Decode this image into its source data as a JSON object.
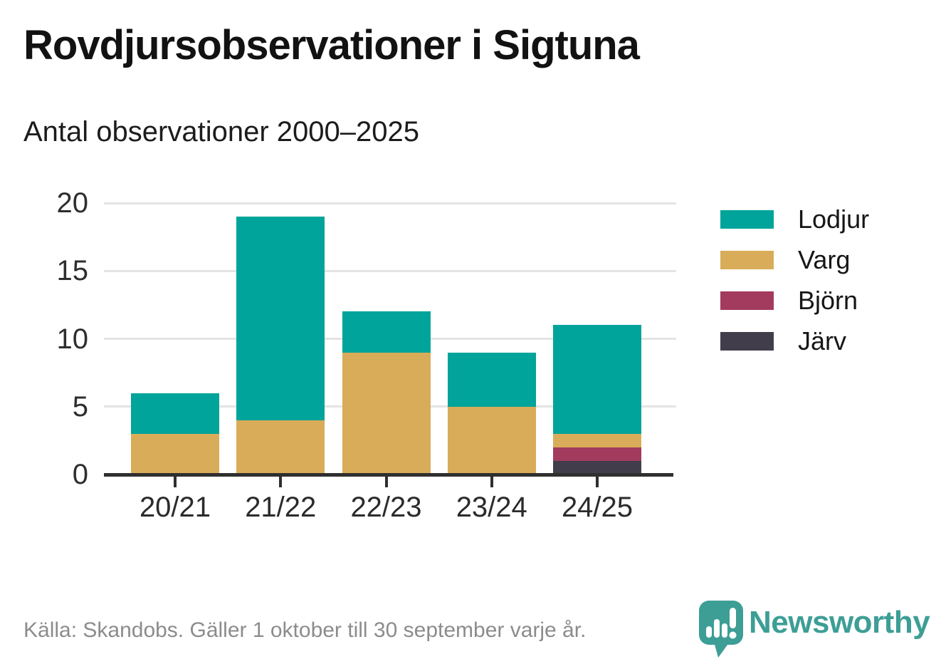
{
  "header": {
    "title": "Rovdjursobservationer i Sigtuna",
    "subtitle": "Antal observationer 2000–2025"
  },
  "chart_data": {
    "type": "bar",
    "stacked": true,
    "title": "Rovdjursobservationer i Sigtuna",
    "subtitle": "Antal observationer 2000–2025",
    "xlabel": "",
    "ylabel": "",
    "categories": [
      "20/21",
      "21/22",
      "22/23",
      "23/24",
      "24/25"
    ],
    "series": [
      {
        "name": "Lodjur",
        "color": "#00a49a",
        "values": [
          3,
          15,
          3,
          4,
          8
        ]
      },
      {
        "name": "Varg",
        "color": "#d9ac59",
        "values": [
          3,
          4,
          9,
          5,
          1
        ]
      },
      {
        "name": "Björn",
        "color": "#a23b5e",
        "values": [
          0,
          0,
          0,
          0,
          1
        ]
      },
      {
        "name": "Järv",
        "color": "#413d4b",
        "values": [
          0,
          0,
          0,
          0,
          1
        ]
      }
    ],
    "stack_order_bottom_to_top": [
      "Järv",
      "Björn",
      "Varg",
      "Lodjur"
    ],
    "y_ticks": [
      0,
      5,
      10,
      15,
      20
    ],
    "ylim": [
      0,
      20
    ],
    "grid": "horizontal",
    "legend_position": "right"
  },
  "footer": {
    "source": "Källa: Skandobs. Gäller 1 oktober till 30 september varje år.",
    "brand": "Newsworthy"
  },
  "icons": {
    "logo": "newsworthy-speech-bubble-bar-chart-icon"
  },
  "colors": {
    "accent_teal": "#00a49a",
    "tan": "#d9ac59",
    "maroon": "#a23b5e",
    "dark_slate": "#413d4b",
    "brand_teal": "#3d9e96",
    "grid": "#e4e4e4",
    "axis": "#2f2f2f",
    "source_text": "#8c8c8c"
  }
}
